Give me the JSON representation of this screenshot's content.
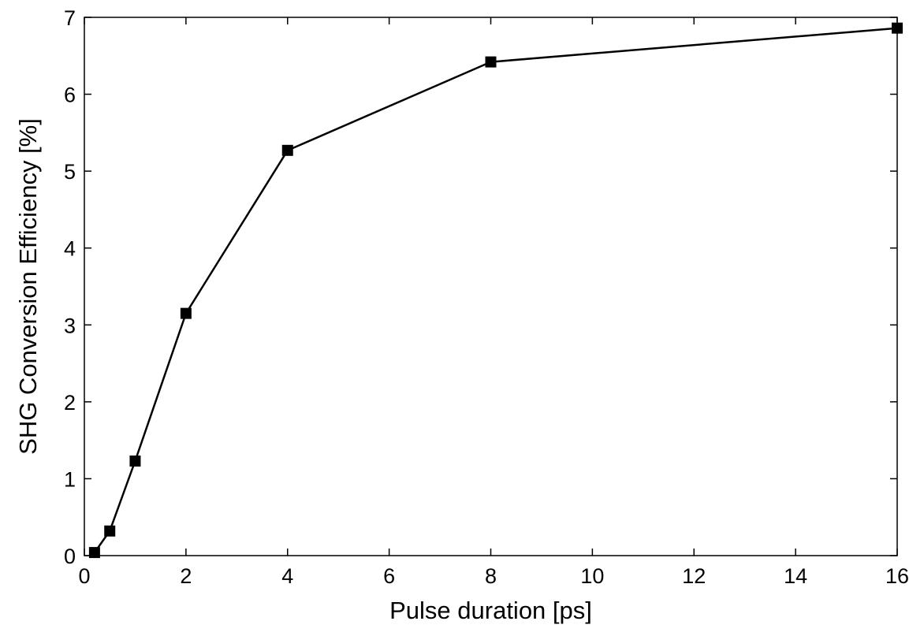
{
  "chart_data": {
    "type": "line",
    "title": "",
    "xlabel": "Pulse duration [ps]",
    "ylabel": "SHG Conversion Efficiency [%]",
    "xlim": [
      0,
      16
    ],
    "ylim": [
      0,
      7
    ],
    "xticks": [
      0,
      2,
      4,
      6,
      8,
      10,
      12,
      14,
      16
    ],
    "yticks": [
      0,
      1,
      2,
      3,
      4,
      5,
      6,
      7
    ],
    "grid": false,
    "legend": "none",
    "series": [
      {
        "x": [
          0.2,
          0.5,
          1,
          2,
          4,
          8,
          16
        ],
        "y": [
          0.04,
          0.32,
          1.23,
          3.15,
          5.27,
          6.42,
          6.86
        ],
        "color": "#000000",
        "marker": "square"
      }
    ]
  }
}
